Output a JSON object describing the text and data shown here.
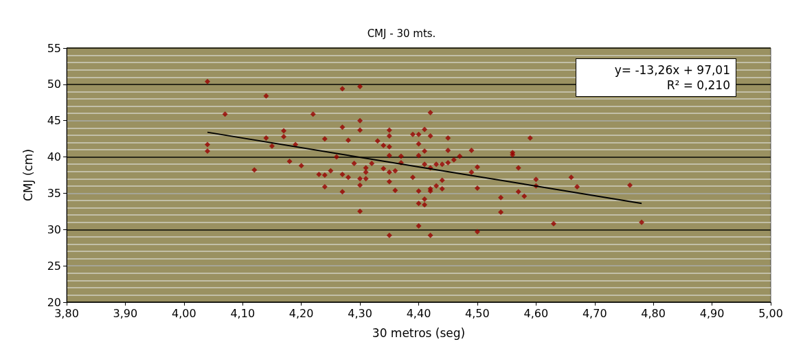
{
  "chart_data": {
    "type": "scatter",
    "title": "CMJ - 30 mts.",
    "xlabel": "30 metros (seg)",
    "ylabel": "CMJ (cm)",
    "xlim": [
      3.8,
      5.0
    ],
    "xticks": [
      {
        "value": 3.8,
        "label": "3,80"
      },
      {
        "value": 3.9,
        "label": "3,90"
      },
      {
        "value": 4.0,
        "label": "4,00"
      },
      {
        "value": 4.1,
        "label": "4,10"
      },
      {
        "value": 4.2,
        "label": "4,20"
      },
      {
        "value": 4.3,
        "label": "4,30"
      },
      {
        "value": 4.4,
        "label": "4,40"
      },
      {
        "value": 4.5,
        "label": "4,50"
      },
      {
        "value": 4.6,
        "label": "4,60"
      },
      {
        "value": 4.7,
        "label": "4,70"
      },
      {
        "value": 4.8,
        "label": "4,80"
      },
      {
        "value": 4.9,
        "label": "4,90"
      },
      {
        "value": 5.0,
        "label": "5,00"
      }
    ],
    "ylim": [
      20,
      55
    ],
    "yticks": [
      20,
      25,
      30,
      35,
      40,
      45,
      50,
      55
    ],
    "grid": "y",
    "marker": "diamond",
    "annotations": [
      "y= -13,26x + 97,01",
      "R² = 0,210"
    ],
    "series": [
      {
        "color": "#990000",
        "x": [
          4.04,
          4.04,
          4.04,
          4.07,
          4.12,
          4.14,
          4.14,
          4.15,
          4.17,
          4.17,
          4.18,
          4.19,
          4.2,
          4.22,
          4.23,
          4.24,
          4.24,
          4.24,
          4.25,
          4.26,
          4.27,
          4.27,
          4.27,
          4.27,
          4.28,
          4.28,
          4.29,
          4.3,
          4.3,
          4.3,
          4.3,
          4.3,
          4.3,
          4.31,
          4.31,
          4.31,
          4.32,
          4.33,
          4.34,
          4.34,
          4.35,
          4.35,
          4.35,
          4.35,
          4.35,
          4.35,
          4.35,
          4.36,
          4.36,
          4.37,
          4.37,
          4.39,
          4.39,
          4.4,
          4.4,
          4.4,
          4.4,
          4.4,
          4.4,
          4.41,
          4.41,
          4.41,
          4.41,
          4.41,
          4.42,
          4.42,
          4.42,
          4.42,
          4.42,
          4.42,
          4.43,
          4.43,
          4.44,
          4.44,
          4.44,
          4.45,
          4.45,
          4.45,
          4.46,
          4.47,
          4.49,
          4.49,
          4.5,
          4.5,
          4.5,
          4.54,
          4.54,
          4.56,
          4.56,
          4.57,
          4.57,
          4.58,
          4.59,
          4.6,
          4.6,
          4.63,
          4.66,
          4.67,
          4.76,
          4.78
        ],
        "values": [
          50.4,
          41.7,
          40.8,
          45.9,
          38.2,
          48.4,
          42.6,
          41.5,
          43.6,
          42.8,
          39.4,
          41.7,
          38.8,
          45.9,
          37.6,
          42.5,
          37.5,
          35.9,
          38.1,
          40.0,
          44.1,
          49.4,
          37.6,
          35.2,
          42.3,
          37.2,
          39.1,
          49.7,
          45.0,
          43.7,
          37.0,
          36.1,
          32.5,
          37.9,
          37.0,
          38.5,
          39.1,
          42.2,
          41.6,
          38.4,
          43.7,
          42.9,
          41.4,
          40.2,
          37.9,
          36.6,
          29.2,
          38.1,
          35.4,
          40.1,
          39.2,
          37.2,
          43.1,
          43.1,
          41.8,
          40.2,
          35.3,
          33.6,
          30.5,
          43.8,
          40.8,
          39.0,
          34.2,
          33.4,
          46.1,
          42.9,
          38.5,
          35.6,
          35.3,
          29.2,
          39.0,
          36.0,
          39.0,
          36.8,
          35.6,
          42.6,
          40.9,
          39.2,
          39.6,
          40.1,
          40.9,
          37.9,
          38.6,
          35.7,
          29.7,
          34.4,
          32.4,
          40.3,
          40.6,
          38.5,
          35.2,
          34.6,
          42.6,
          36.9,
          36.0,
          30.8,
          37.2,
          35.9,
          36.1,
          31.0
        ]
      },
      {
        "type": "line",
        "color": "#000000",
        "marker": "none",
        "x": [
          4.04,
          4.78
        ],
        "values": [
          43.4,
          33.6
        ]
      }
    ]
  }
}
